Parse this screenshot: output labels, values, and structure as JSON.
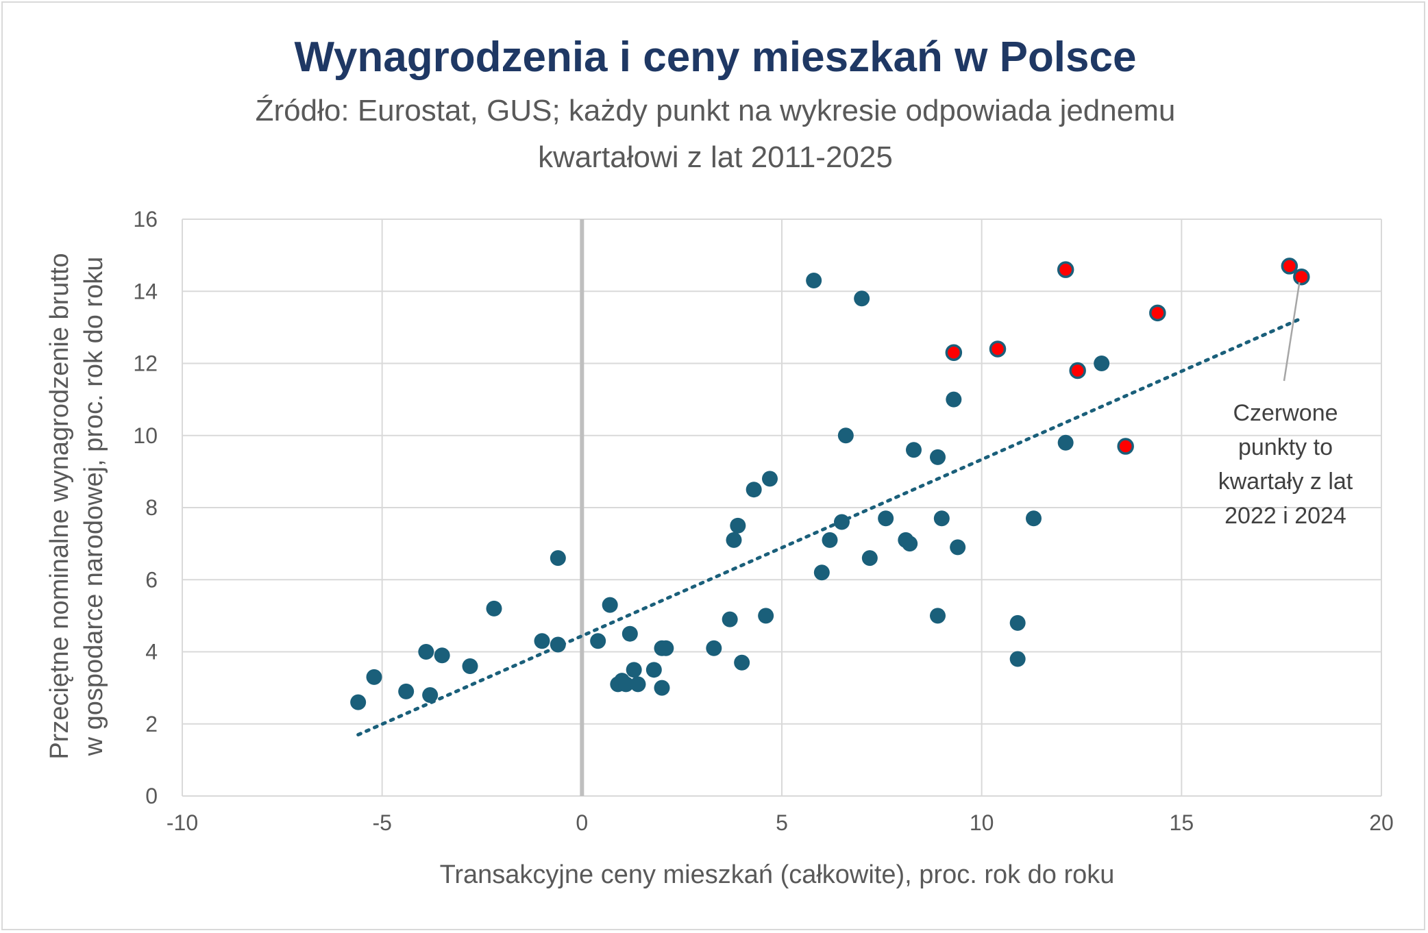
{
  "chart_data": {
    "type": "scatter",
    "title": "Wynagrodzenia i ceny mieszkań w Polsce",
    "subtitle_lines": [
      "Źródło: Eurostat, GUS; każdy punkt na wykresie odpowiada jednemu",
      "kwartałowi z lat 2011-2025"
    ],
    "xlabel": "Transakcyjne ceny mieszkań (całkowite), proc. rok do roku",
    "ylabel_lines": [
      "Przeciętne nominalne wynagrodzenie brutto",
      "w gospodarce narodowej, proc. rok do roku"
    ],
    "xlim": [
      -10,
      20
    ],
    "ylim": [
      0,
      16
    ],
    "xticks": [
      -10,
      -5,
      0,
      5,
      10,
      15,
      20
    ],
    "yticks": [
      0,
      2,
      4,
      6,
      8,
      10,
      12,
      14,
      16
    ],
    "grid": true,
    "colors": {
      "points": "#1a5f7a",
      "highlight": "#ff0000",
      "trend": "#1a5f7a",
      "grid": "#d9d9d9",
      "zero_line": "#bfbfbf"
    },
    "series": [
      {
        "points": [
          [
            -5.6,
            2.6
          ],
          [
            -5.2,
            3.3
          ],
          [
            -4.4,
            2.9
          ],
          [
            -3.8,
            2.8
          ],
          [
            -3.9,
            4.0
          ],
          [
            -3.5,
            3.9
          ],
          [
            -2.8,
            3.6
          ],
          [
            -2.2,
            5.2
          ],
          [
            -1.0,
            4.3
          ],
          [
            -0.6,
            4.2
          ],
          [
            -0.6,
            6.6
          ],
          [
            0.4,
            4.3
          ],
          [
            0.7,
            5.3
          ],
          [
            0.9,
            3.1
          ],
          [
            1.0,
            3.2
          ],
          [
            1.1,
            3.1
          ],
          [
            1.2,
            4.5
          ],
          [
            1.3,
            3.5
          ],
          [
            1.4,
            3.1
          ],
          [
            1.8,
            3.5
          ],
          [
            2.0,
            4.1
          ],
          [
            2.1,
            4.1
          ],
          [
            2.0,
            3.0
          ],
          [
            3.3,
            4.1
          ],
          [
            3.7,
            4.9
          ],
          [
            3.8,
            7.1
          ],
          [
            3.9,
            7.5
          ],
          [
            4.0,
            3.7
          ],
          [
            4.3,
            8.5
          ],
          [
            4.6,
            5.0
          ],
          [
            4.7,
            8.8
          ],
          [
            5.8,
            14.3
          ],
          [
            6.0,
            6.2
          ],
          [
            6.2,
            7.1
          ],
          [
            6.5,
            7.6
          ],
          [
            6.6,
            10.0
          ],
          [
            7.0,
            13.8
          ],
          [
            7.2,
            6.6
          ],
          [
            7.6,
            7.7
          ],
          [
            8.1,
            7.1
          ],
          [
            8.2,
            7.0
          ],
          [
            8.3,
            9.6
          ],
          [
            8.9,
            9.4
          ],
          [
            9.0,
            7.7
          ],
          [
            8.9,
            5.0
          ],
          [
            9.3,
            11.0
          ],
          [
            9.4,
            6.9
          ],
          [
            10.9,
            4.8
          ],
          [
            10.9,
            3.8
          ],
          [
            11.3,
            7.7
          ],
          [
            12.1,
            9.8
          ],
          [
            13.0,
            12.0
          ]
        ]
      },
      {
        "highlight": true,
        "points": [
          [
            9.3,
            12.3
          ],
          [
            10.4,
            12.4
          ],
          [
            12.1,
            14.6
          ],
          [
            12.4,
            11.8
          ],
          [
            13.6,
            9.7
          ],
          [
            14.4,
            13.4
          ],
          [
            17.7,
            14.7
          ],
          [
            18.0,
            14.4
          ]
        ]
      }
    ],
    "trendline": {
      "style": "dotted",
      "from": [
        -5.6,
        1.7
      ],
      "to": [
        18.0,
        13.25
      ]
    },
    "annotation": {
      "lines": [
        "Czerwone",
        "punkty to",
        "kwartały z  lat",
        "2022 i 2024"
      ],
      "pointer_target": [
        17.95,
        14.25
      ]
    }
  }
}
